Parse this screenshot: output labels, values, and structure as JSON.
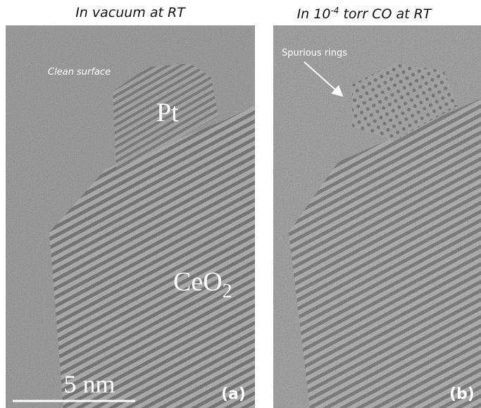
{
  "panels": [
    {
      "title": {
        "text": "In vacuum at RT"
      },
      "annotation": "Clean surface",
      "particle_label": "Pt",
      "support_label": {
        "base": "CeO",
        "subscript": "2"
      },
      "scale_bar": "5 nm",
      "panel_label": "(a)"
    },
    {
      "title": {
        "prefix": "In 10",
        "superscript": "-4",
        "suffix": " torr CO at RT"
      },
      "annotation": "Spurious rings",
      "panel_label": "(b)"
    }
  ]
}
